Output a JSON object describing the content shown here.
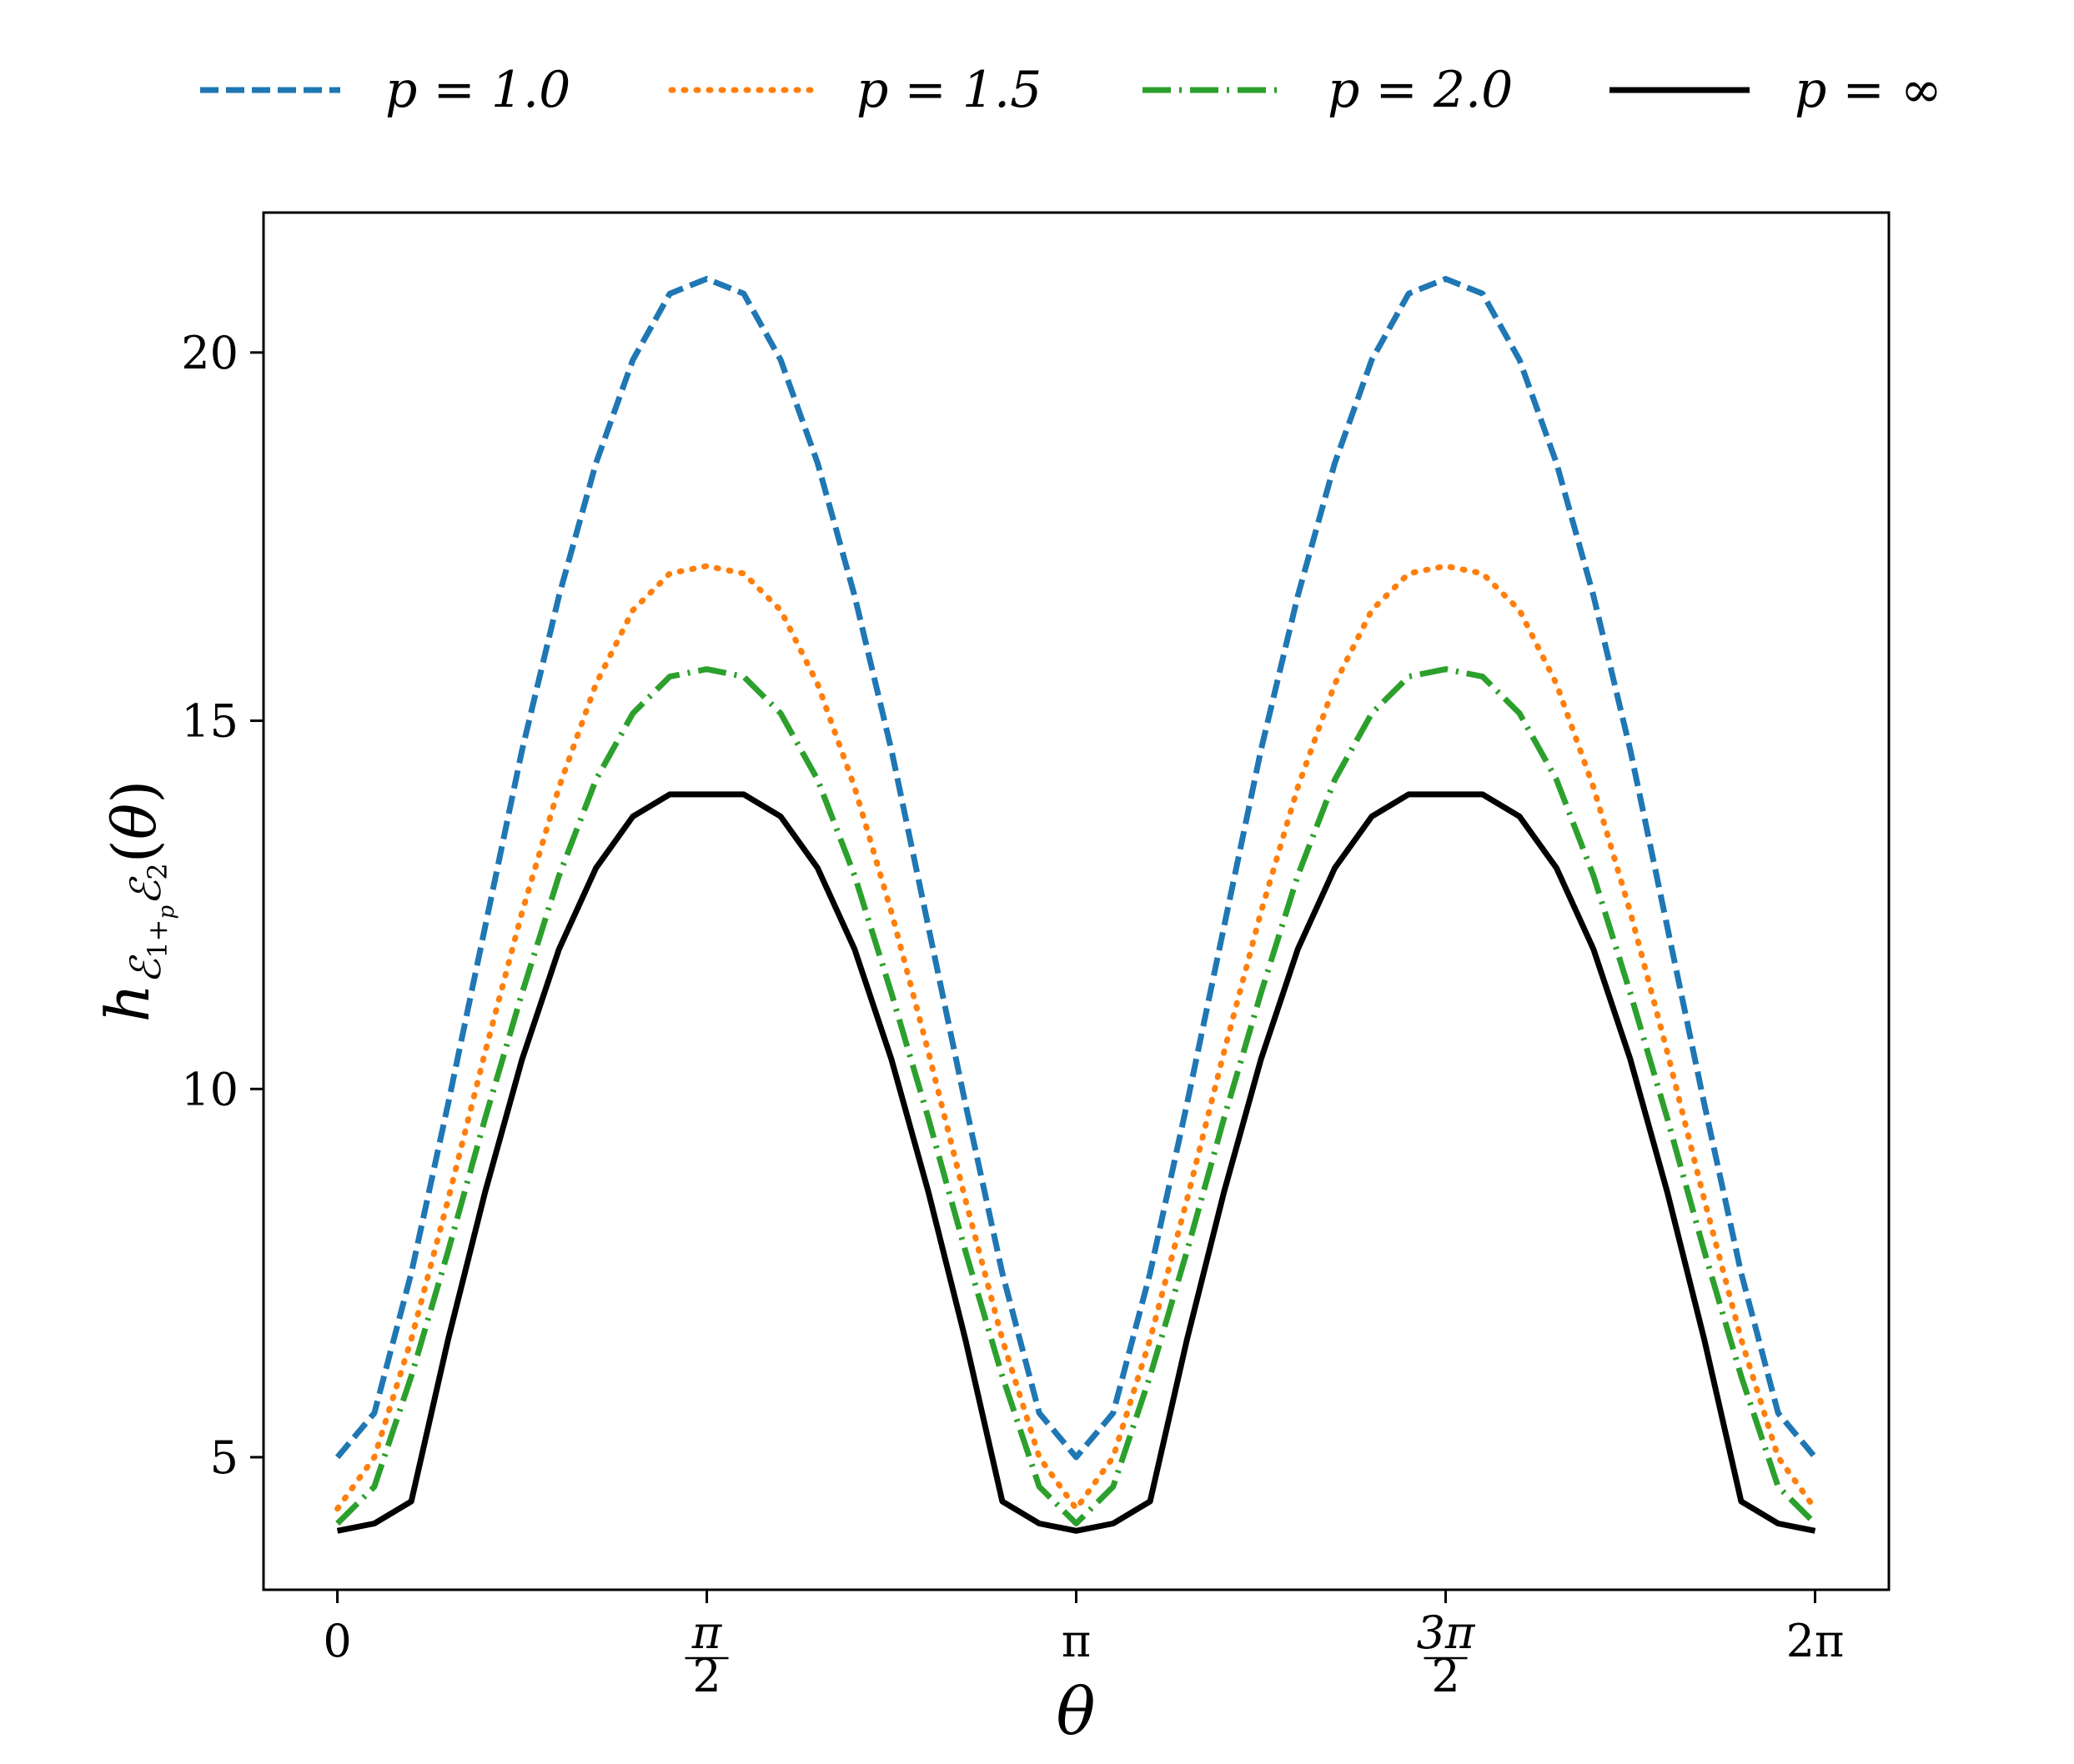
{
  "chart_data": {
    "type": "line",
    "title": "",
    "xlabel": "θ",
    "ylabel": "h_{ℰ₁+ₚℰ₂}(θ)",
    "xlim": [
      -0.314,
      6.597
    ],
    "ylim": [
      3.2,
      21.9
    ],
    "grid": false,
    "legend_position": "top, outside plot, single row",
    "x_ticks": [
      {
        "value": 0,
        "label": "0",
        "kind": "plain"
      },
      {
        "value": 1.5708,
        "num": "π",
        "den": "2",
        "kind": "fraction"
      },
      {
        "value": 3.1416,
        "label": "π",
        "kind": "plain"
      },
      {
        "value": 4.7124,
        "num": "3π",
        "den": "2",
        "kind": "fraction"
      },
      {
        "value": 6.2832,
        "label": "2π",
        "kind": "plain"
      }
    ],
    "y_ticks": [
      {
        "value": 5,
        "label": "5"
      },
      {
        "value": 10,
        "label": "10"
      },
      {
        "value": 15,
        "label": "15"
      },
      {
        "value": 20,
        "label": "20"
      }
    ],
    "series": [
      {
        "name": "p = 1.0",
        "color": "#1f77b4",
        "style": "dashed",
        "x": [
          0,
          0.1571,
          0.3142,
          0.4712,
          0.6283,
          0.7854,
          0.9425,
          1.0996,
          1.2566,
          1.4137,
          1.5708,
          1.7279,
          1.885,
          2.042,
          2.1991,
          2.3562,
          2.5133,
          2.6704,
          2.8274,
          2.9845,
          3.1416,
          3.2987,
          3.4558,
          3.6128,
          3.7699,
          3.927,
          4.0841,
          4.2412,
          4.3982,
          4.5553,
          4.7124,
          4.8695,
          5.0265,
          5.1836,
          5.3407,
          5.4978,
          5.6549,
          5.8119,
          5.969,
          6.1261,
          6.2832
        ],
        "y": [
          5.0,
          5.6,
          7.5,
          9.8,
          12.2,
          14.6,
          16.7,
          18.5,
          19.9,
          20.8,
          21.0,
          20.8,
          19.9,
          18.5,
          16.7,
          14.6,
          12.2,
          9.8,
          7.5,
          5.6,
          5.0,
          5.6,
          7.5,
          9.8,
          12.2,
          14.6,
          16.7,
          18.5,
          19.9,
          20.8,
          21.0,
          20.8,
          19.9,
          18.5,
          16.7,
          14.6,
          12.2,
          9.8,
          7.5,
          5.6,
          5.0
        ]
      },
      {
        "name": "p = 1.5",
        "color": "#ff7f0e",
        "style": "dotted",
        "x": [
          0,
          0.1571,
          0.3142,
          0.4712,
          0.6283,
          0.7854,
          0.9425,
          1.0996,
          1.2566,
          1.4137,
          1.5708,
          1.7279,
          1.885,
          2.042,
          2.1991,
          2.3562,
          2.5133,
          2.6704,
          2.8274,
          2.9845,
          3.1416,
          3.2987,
          3.4558,
          3.6128,
          3.7699,
          3.927,
          4.0841,
          4.2412,
          4.3982,
          4.5553,
          4.7124,
          4.8695,
          5.0265,
          5.1836,
          5.3407,
          5.4978,
          5.6549,
          5.8119,
          5.969,
          6.1261,
          6.2832
        ],
        "y": [
          4.3,
          5.0,
          6.6,
          8.5,
          10.5,
          12.4,
          14.1,
          15.5,
          16.5,
          17.0,
          17.1,
          17.0,
          16.5,
          15.5,
          14.1,
          12.4,
          10.5,
          8.5,
          6.6,
          5.0,
          4.3,
          5.0,
          6.6,
          8.5,
          10.5,
          12.4,
          14.1,
          15.5,
          16.5,
          17.0,
          17.1,
          17.0,
          16.5,
          15.5,
          14.1,
          12.4,
          10.5,
          8.5,
          6.6,
          5.0,
          4.3
        ]
      },
      {
        "name": "p = 2.0",
        "color": "#2ca02c",
        "style": "dashdot",
        "x": [
          0,
          0.1571,
          0.3142,
          0.4712,
          0.6283,
          0.7854,
          0.9425,
          1.0996,
          1.2566,
          1.4137,
          1.5708,
          1.7279,
          1.885,
          2.042,
          2.1991,
          2.3562,
          2.5133,
          2.6704,
          2.8274,
          2.9845,
          3.1416,
          3.2987,
          3.4558,
          3.6128,
          3.7699,
          3.927,
          4.0841,
          4.2412,
          4.3982,
          4.5553,
          4.7124,
          4.8695,
          5.0265,
          5.1836,
          5.3407,
          5.4978,
          5.6549,
          5.8119,
          5.969,
          6.1261,
          6.2832
        ],
        "y": [
          4.1,
          4.6,
          6.1,
          7.8,
          9.6,
          11.3,
          12.9,
          14.2,
          15.1,
          15.6,
          15.7,
          15.6,
          15.1,
          14.2,
          12.9,
          11.3,
          9.6,
          7.8,
          6.1,
          4.6,
          4.1,
          4.6,
          6.1,
          7.8,
          9.6,
          11.3,
          12.9,
          14.2,
          15.1,
          15.6,
          15.7,
          15.6,
          15.1,
          14.2,
          12.9,
          11.3,
          9.6,
          7.8,
          6.1,
          4.6,
          4.1
        ]
      },
      {
        "name": "p = ∞",
        "color": "#000000",
        "style": "solid",
        "x": [
          0,
          0.1571,
          0.3142,
          0.4712,
          0.6283,
          0.7854,
          0.9425,
          1.0996,
          1.2566,
          1.4137,
          1.5708,
          1.7279,
          1.885,
          2.042,
          2.1991,
          2.3562,
          2.5133,
          2.6704,
          2.8274,
          2.9845,
          3.1416,
          3.2987,
          3.4558,
          3.6128,
          3.7699,
          3.927,
          4.0841,
          4.2412,
          4.3982,
          4.5553,
          4.7124,
          4.8695,
          5.0265,
          5.1836,
          5.3407,
          5.4978,
          5.6549,
          5.8119,
          5.969,
          6.1261,
          6.2832
        ],
        "y": [
          4.0,
          4.1,
          4.4,
          6.6,
          8.6,
          10.4,
          11.9,
          13.0,
          13.7,
          14.0,
          14.0,
          14.0,
          13.7,
          13.0,
          11.9,
          10.4,
          8.6,
          6.6,
          4.4,
          4.1,
          4.0,
          4.1,
          4.4,
          6.6,
          8.6,
          10.4,
          11.9,
          13.0,
          13.7,
          14.0,
          14.0,
          14.0,
          13.7,
          13.0,
          11.9,
          10.4,
          8.6,
          6.6,
          4.4,
          4.1,
          4.0
        ]
      }
    ]
  }
}
